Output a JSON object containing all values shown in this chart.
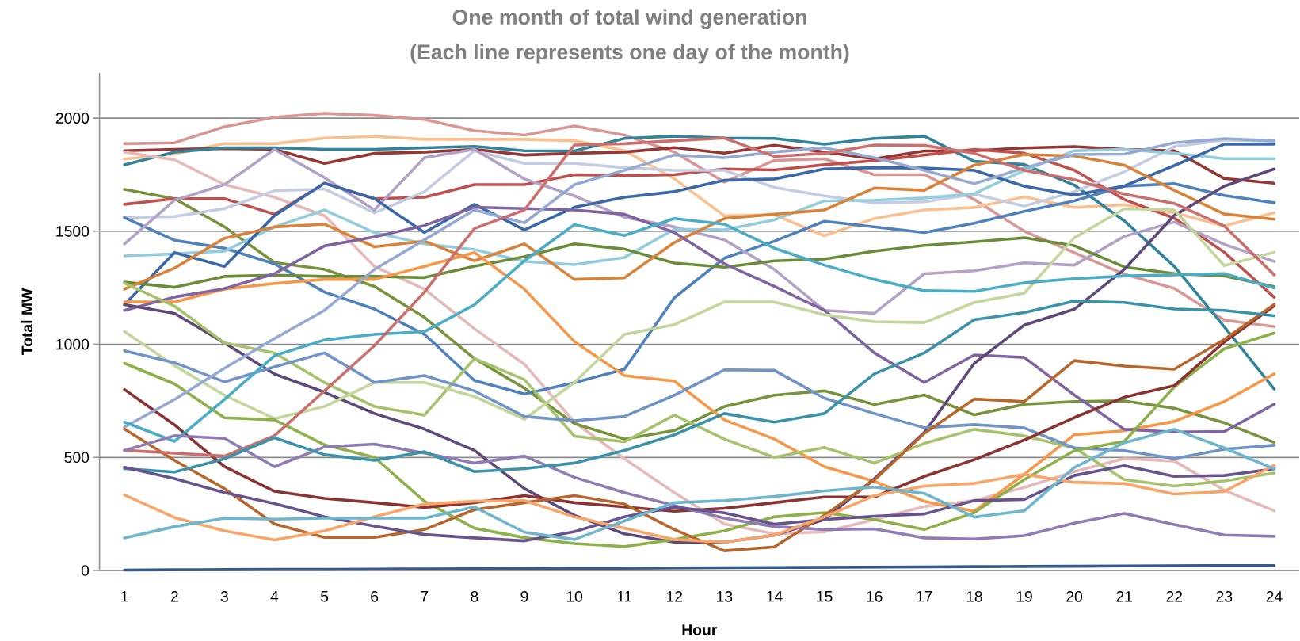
{
  "chart_data": {
    "type": "line",
    "title": "One month of total wind generation",
    "subtitle": "(Each line represents one day of the month)",
    "xlabel": "Hour",
    "ylabel": "Total MW",
    "categories": [
      "1",
      "2",
      "3",
      "4",
      "5",
      "6",
      "7",
      "8",
      "9",
      "10",
      "11",
      "12",
      "13",
      "14",
      "15",
      "16",
      "17",
      "18",
      "19",
      "20",
      "21",
      "22",
      "23",
      "24"
    ],
    "ylim": [
      0,
      2200
    ],
    "yticks": [
      0,
      500,
      1000,
      1500,
      2000
    ],
    "grid": "y",
    "series": [
      {
        "color": "#D99694",
        "values": [
          1887,
          1891,
          1962,
          2004,
          2021,
          2012,
          1994,
          1944,
          1925,
          1965,
          1925,
          1850,
          1717,
          1813,
          1820,
          1750,
          1750,
          1640,
          1500,
          1405,
          1310,
          1247,
          1107,
          1078
        ]
      },
      {
        "color": "#FAC090",
        "values": [
          1819,
          1841,
          1887,
          1887,
          1912,
          1919,
          1906,
          1906,
          1906,
          1900,
          1857,
          1732,
          1568,
          1573,
          1480,
          1556,
          1594,
          1605,
          1652,
          1605,
          1617,
          1582,
          1523,
          1582
        ]
      },
      {
        "color": "#953735",
        "values": [
          1856,
          1862,
          1866,
          1862,
          1800,
          1844,
          1850,
          1862,
          1837,
          1845,
          1850,
          1870,
          1845,
          1880,
          1850,
          1820,
          1855,
          1856,
          1868,
          1874,
          1862,
          1856,
          1733,
          1712
        ]
      },
      {
        "color": "#31849B",
        "values": [
          1794,
          1850,
          1869,
          1869,
          1862,
          1862,
          1869,
          1875,
          1856,
          1855,
          1910,
          1920,
          1912,
          1910,
          1885,
          1910,
          1920,
          1809,
          1795,
          1704,
          1546,
          1345,
          1078,
          802
        ]
      },
      {
        "color": "#E6B9B8",
        "values": [
          1850,
          1816,
          1706,
          1650,
          1569,
          1344,
          1244,
          1069,
          912,
          656,
          494,
          344,
          206,
          162,
          171,
          225,
          283,
          309,
          367,
          437,
          495,
          484,
          355,
          264
        ]
      },
      {
        "color": "#77933C",
        "values": [
          1685,
          1644,
          1519,
          1362,
          1331,
          1256,
          1119,
          937,
          806,
          650,
          581,
          619,
          725,
          775,
          794,
          734,
          776,
          688,
          735,
          747,
          750,
          717,
          653,
          566
        ]
      },
      {
        "color": "#C0504D",
        "values": [
          1619,
          1644,
          1644,
          1575,
          1712,
          1644,
          1650,
          1706,
          1706,
          1750,
          1746,
          1750,
          1775,
          1771,
          1794,
          1812,
          1837,
          1862,
          1845,
          1770,
          1640,
          1558,
          1407,
          1208
        ]
      },
      {
        "color": "#C3CCE2",
        "values": [
          1560,
          1565,
          1600,
          1679,
          1687,
          1581,
          1675,
          1856,
          1800,
          1800,
          1781,
          1769,
          1769,
          1694,
          1656,
          1625,
          1630,
          1664,
          1611,
          1675,
          1763,
          1874,
          1903,
          1897
        ]
      },
      {
        "color": "#4F81BD",
        "values": [
          1560,
          1460,
          1425,
          1356,
          1231,
          1156,
          1044,
          840,
          780,
          830,
          890,
          1206,
          1381,
          1456,
          1544,
          1519,
          1494,
          1535,
          1588,
          1634,
          1699,
          1710,
          1658,
          1626
        ]
      },
      {
        "color": "#B3A2C7",
        "values": [
          1444,
          1637,
          1706,
          1862,
          1737,
          1594,
          1825,
          1862,
          1731,
          1656,
          1562,
          1519,
          1462,
          1331,
          1150,
          1137,
          1312,
          1325,
          1360,
          1350,
          1477,
          1541,
          1442,
          1366
        ]
      },
      {
        "color": "#93CDDD",
        "values": [
          1391,
          1400,
          1412,
          1519,
          1594,
          1494,
          1444,
          1419,
          1366,
          1352,
          1384,
          1509,
          1506,
          1550,
          1634,
          1637,
          1647,
          1666,
          1769,
          1856,
          1862,
          1845,
          1821,
          1821
        ]
      },
      {
        "color": "#3A68A8",
        "values": [
          1175,
          1406,
          1344,
          1569,
          1712,
          1644,
          1494,
          1619,
          1506,
          1606,
          1650,
          1675,
          1725,
          1731,
          1775,
          1781,
          1779,
          1769,
          1699,
          1660,
          1700,
          1790,
          1885,
          1885
        ]
      },
      {
        "color": "#6A8B37",
        "values": [
          1275,
          1252,
          1300,
          1306,
          1300,
          1300,
          1295,
          1345,
          1387,
          1444,
          1421,
          1359,
          1341,
          1369,
          1377,
          1412,
          1437,
          1453,
          1471,
          1436,
          1342,
          1313,
          1302,
          1255
        ]
      },
      {
        "color": "#D9823A",
        "values": [
          1244,
          1337,
          1469,
          1519,
          1531,
          1431,
          1456,
          1369,
          1444,
          1287,
          1294,
          1450,
          1556,
          1575,
          1594,
          1691,
          1681,
          1792,
          1839,
          1833,
          1792,
          1681,
          1576,
          1553
        ]
      },
      {
        "color": "#F79646",
        "values": [
          1187,
          1187,
          1244,
          1269,
          1287,
          1287,
          1344,
          1406,
          1244,
          1012,
          862,
          837,
          666,
          581,
          459,
          394,
          306,
          262,
          425,
          600,
          618,
          659,
          747,
          869
        ]
      },
      {
        "color": "#8064A2",
        "values": [
          1150,
          1209,
          1246,
          1312,
          1435,
          1475,
          1525,
          1606,
          1600,
          1594,
          1575,
          1494,
          1356,
          1256,
          1150,
          962,
          831,
          953,
          942,
          776,
          624,
          612,
          614,
          735
        ]
      },
      {
        "color": "#5F497A",
        "values": [
          1175,
          1137,
          1006,
          869,
          788,
          694,
          625,
          531,
          362,
          244,
          162,
          125,
          125,
          156,
          225,
          406,
          610,
          916,
          1085,
          1155,
          1331,
          1570,
          1699,
          1775
        ]
      },
      {
        "color": "#A5C26C",
        "values": [
          1270,
          1169,
          1006,
          962,
          831,
          725,
          687,
          937,
          844,
          594,
          569,
          687,
          581,
          500,
          544,
          475,
          562,
          624,
          595,
          542,
          402,
          373,
          396,
          431
        ]
      },
      {
        "color": "#C3D69B",
        "values": [
          1056,
          906,
          775,
          671,
          725,
          831,
          831,
          769,
          669,
          831,
          1044,
          1087,
          1187,
          1187,
          1131,
          1100,
          1096,
          1185,
          1226,
          1471,
          1599,
          1594,
          1348,
          1407
        ]
      },
      {
        "color": "#7094C8",
        "values": [
          971,
          919,
          834,
          900,
          962,
          831,
          862,
          794,
          681,
          662,
          681,
          775,
          887,
          885,
          762,
          694,
          631,
          645,
          630,
          542,
          530,
          495,
          536,
          554
        ]
      },
      {
        "color": "#8DB049",
        "values": [
          916,
          825,
          675,
          666,
          556,
          500,
          306,
          187,
          145,
          119,
          106,
          137,
          175,
          237,
          256,
          225,
          181,
          256,
          402,
          530,
          571,
          811,
          980,
          1050
        ]
      },
      {
        "color": "#8B3232",
        "values": [
          800,
          644,
          459,
          350,
          319,
          300,
          279,
          300,
          331,
          300,
          281,
          262,
          275,
          300,
          325,
          325,
          416,
          490,
          577,
          676,
          766,
          817,
          1010,
          1170
        ]
      },
      {
        "color": "#95AAD2",
        "values": [
          634,
          756,
          894,
          1025,
          1150,
          1331,
          1462,
          1594,
          1537,
          1706,
          1769,
          1837,
          1825,
          1850,
          1869,
          1825,
          1769,
          1710,
          1780,
          1839,
          1841,
          1891,
          1909,
          1900
        ]
      },
      {
        "color": "#4BACC6",
        "values": [
          656,
          571,
          756,
          950,
          1019,
          1044,
          1056,
          1175,
          1369,
          1529,
          1481,
          1556,
          1531,
          1425,
          1350,
          1287,
          1237,
          1234,
          1272,
          1290,
          1302,
          1307,
          1313,
          1249
        ]
      },
      {
        "color": "#B8672C",
        "values": [
          625,
          487,
          362,
          206,
          146,
          146,
          181,
          269,
          300,
          331,
          294,
          181,
          87,
          104,
          244,
          400,
          606,
          758,
          747,
          928,
          904,
          890,
          1021,
          1176
        ]
      },
      {
        "color": "#CB6F6D",
        "values": [
          531,
          519,
          506,
          596,
          794,
          994,
          1231,
          1512,
          1594,
          1881,
          1887,
          1900,
          1912,
          1831,
          1844,
          1881,
          1879,
          1845,
          1769,
          1728,
          1664,
          1623,
          1523,
          1307
        ]
      },
      {
        "color": "#8F7CB4",
        "values": [
          531,
          596,
          584,
          459,
          546,
          559,
          519,
          475,
          506,
          412,
          344,
          287,
          231,
          194,
          181,
          184,
          144,
          139,
          154,
          209,
          252,
          203,
          157,
          151
        ]
      },
      {
        "color": "#3B93AA",
        "values": [
          450,
          435,
          494,
          587,
          512,
          487,
          525,
          437,
          450,
          475,
          531,
          600,
          694,
          656,
          694,
          869,
          962,
          1109,
          1140,
          1191,
          1185,
          1156,
          1150,
          1126
        ]
      },
      {
        "color": "#67538F",
        "values": [
          456,
          406,
          344,
          296,
          237,
          196,
          159,
          144,
          131,
          172,
          237,
          280,
          255,
          205,
          225,
          240,
          250,
          309,
          314,
          420,
          463,
          416,
          420,
          449
        ]
      },
      {
        "color": "#F9A468",
        "values": [
          334,
          234,
          175,
          135,
          175,
          237,
          294,
          306,
          309,
          237,
          187,
          137,
          125,
          156,
          237,
          331,
          373,
          385,
          425,
          390,
          384,
          338,
          349,
          466
        ]
      },
      {
        "color": "#6DB6CD",
        "values": [
          144,
          194,
          231,
          227,
          231,
          231,
          231,
          281,
          169,
          137,
          219,
          300,
          309,
          327,
          352,
          369,
          341,
          236,
          264,
          455,
          565,
          624,
          542,
          449
        ]
      },
      {
        "color": "#355A8C",
        "values": [
          2,
          3,
          4,
          5,
          5,
          6,
          7,
          8,
          9,
          10,
          10,
          11,
          12,
          13,
          14,
          15,
          16,
          17,
          18,
          19,
          20,
          21,
          22,
          22
        ]
      }
    ]
  }
}
